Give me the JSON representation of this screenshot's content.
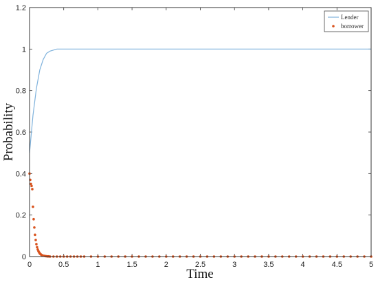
{
  "chart_data": {
    "type": "line",
    "title": "",
    "xlabel": "Time",
    "ylabel": "Probability",
    "xlim": [
      0,
      5
    ],
    "ylim": [
      0,
      1.2
    ],
    "x_ticks": [
      "0",
      "0.5",
      "1",
      "1.5",
      "2",
      "2.5",
      "3",
      "3.5",
      "4",
      "4.5",
      "5"
    ],
    "y_ticks": [
      "0",
      "0.2",
      "0.4",
      "0.6",
      "0.8",
      "1",
      "1.2"
    ],
    "grid": false,
    "legend_position": "top-right",
    "series": [
      {
        "name": "Lender",
        "style": "line",
        "color": "#7fb2dc",
        "points": [
          [
            0,
            0.5
          ],
          [
            0.05,
            0.68
          ],
          [
            0.1,
            0.81
          ],
          [
            0.15,
            0.9
          ],
          [
            0.2,
            0.95
          ],
          [
            0.25,
            0.98
          ],
          [
            0.3,
            0.99
          ],
          [
            0.4,
            1.0
          ],
          [
            0.5,
            1.0
          ],
          [
            1,
            1.0
          ],
          [
            2,
            1.0
          ],
          [
            3,
            1.0
          ],
          [
            4,
            1.0
          ],
          [
            5,
            1.0
          ]
        ]
      },
      {
        "name": "borrower",
        "style": "markers",
        "color": "#d9531e",
        "points": [
          [
            0,
            0.4
          ],
          [
            0.01,
            0.37
          ],
          [
            0.02,
            0.35
          ],
          [
            0.03,
            0.34
          ],
          [
            0.04,
            0.325
          ],
          [
            0.05,
            0.24
          ],
          [
            0.06,
            0.18
          ],
          [
            0.07,
            0.14
          ],
          [
            0.08,
            0.105
          ],
          [
            0.09,
            0.08
          ],
          [
            0.1,
            0.06
          ],
          [
            0.11,
            0.045
          ],
          [
            0.12,
            0.034
          ],
          [
            0.13,
            0.026
          ],
          [
            0.14,
            0.02
          ],
          [
            0.15,
            0.015
          ],
          [
            0.16,
            0.012
          ],
          [
            0.17,
            0.009
          ],
          [
            0.18,
            0.007
          ],
          [
            0.19,
            0.005
          ],
          [
            0.2,
            0.004
          ],
          [
            0.22,
            0.003
          ],
          [
            0.24,
            0.002
          ],
          [
            0.26,
            0.001
          ],
          [
            0.28,
            0.001
          ],
          [
            0.3,
            0.0
          ],
          [
            0.35,
            0.0
          ],
          [
            0.4,
            0.0
          ],
          [
            0.45,
            0.0
          ],
          [
            0.5,
            0.0
          ],
          [
            0.55,
            0.0
          ],
          [
            0.6,
            0.0
          ],
          [
            0.65,
            0.0
          ],
          [
            0.7,
            0.0
          ],
          [
            0.75,
            0.0
          ],
          [
            0.8,
            0.0
          ],
          [
            0.9,
            0.0
          ],
          [
            1.0,
            0.0
          ],
          [
            1.1,
            0.0
          ],
          [
            1.2,
            0.0
          ],
          [
            1.3,
            0.0
          ],
          [
            1.4,
            0.0
          ],
          [
            1.5,
            0.0
          ],
          [
            1.6,
            0.0
          ],
          [
            1.7,
            0.0
          ],
          [
            1.8,
            0.0
          ],
          [
            1.9,
            0.0
          ],
          [
            2.0,
            0.0
          ],
          [
            2.1,
            0.0
          ],
          [
            2.2,
            0.0
          ],
          [
            2.3,
            0.0
          ],
          [
            2.4,
            0.0
          ],
          [
            2.5,
            0.0
          ],
          [
            2.6,
            0.0
          ],
          [
            2.7,
            0.0
          ],
          [
            2.8,
            0.0
          ],
          [
            2.9,
            0.0
          ],
          [
            3.0,
            0.0
          ],
          [
            3.1,
            0.0
          ],
          [
            3.2,
            0.0
          ],
          [
            3.3,
            0.0
          ],
          [
            3.4,
            0.0
          ],
          [
            3.5,
            0.0
          ],
          [
            3.6,
            0.0
          ],
          [
            3.7,
            0.0
          ],
          [
            3.8,
            0.0
          ],
          [
            3.9,
            0.0
          ],
          [
            4.0,
            0.0
          ],
          [
            4.1,
            0.0
          ],
          [
            4.2,
            0.0
          ],
          [
            4.3,
            0.0
          ],
          [
            4.4,
            0.0
          ],
          [
            4.5,
            0.0
          ],
          [
            4.6,
            0.0
          ],
          [
            4.7,
            0.0
          ],
          [
            4.8,
            0.0
          ],
          [
            4.9,
            0.0
          ],
          [
            5.0,
            0.0
          ]
        ]
      }
    ]
  }
}
